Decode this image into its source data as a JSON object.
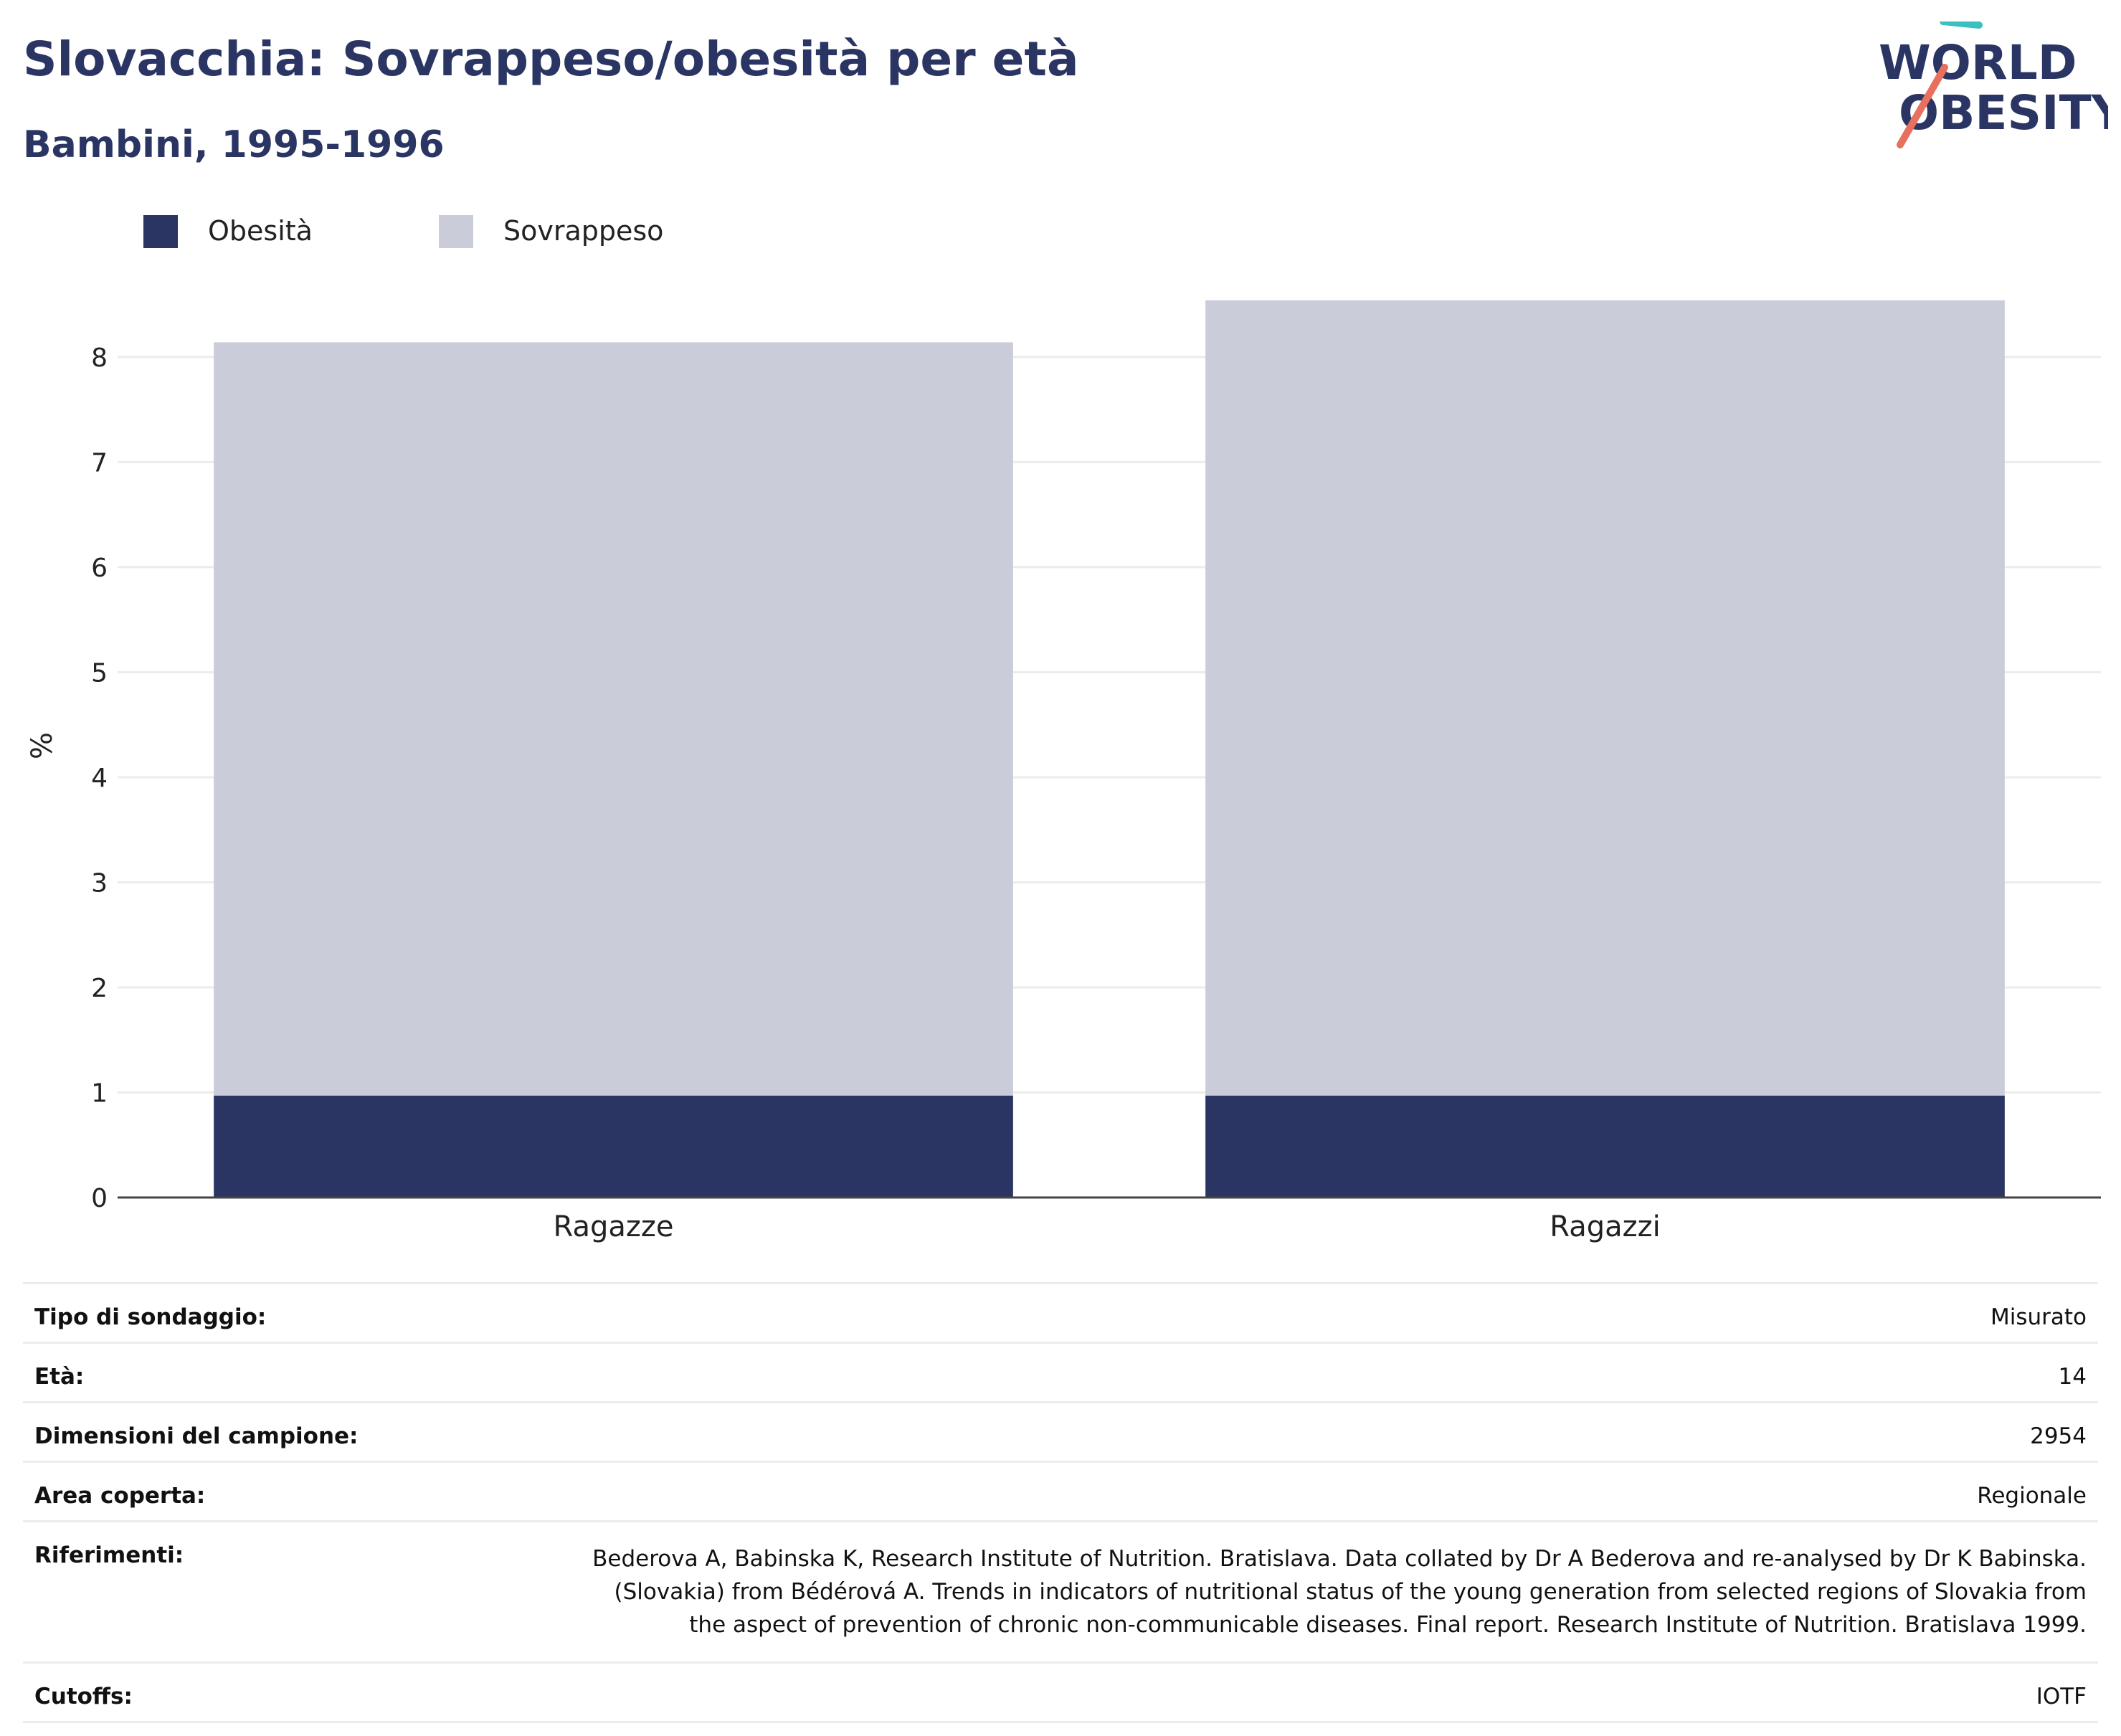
{
  "header": {
    "title": "Slovacchia: Sovrappeso/obesità per età",
    "subtitle": "Bambini, 1995-1996"
  },
  "logo": {
    "line1": "WORLD",
    "line2": "OBESITY",
    "accent_teal": "#3bbfbf",
    "accent_coral": "#e8705f"
  },
  "legend": [
    {
      "label": "Obesità",
      "color": "#2a3563"
    },
    {
      "label": "Sovrappeso",
      "color": "#cacdd9"
    }
  ],
  "chart_data": {
    "type": "bar",
    "stacked": true,
    "categories": [
      "Ragazze",
      "Ragazzi"
    ],
    "series": [
      {
        "name": "Obesità",
        "values": [
          0.97,
          0.97
        ],
        "color": "#2a3563"
      },
      {
        "name": "Sovrappeso",
        "values": [
          7.17,
          7.57
        ],
        "color": "#cacdd9"
      }
    ],
    "ylabel": "%",
    "ylim": [
      0,
      8.6
    ],
    "yticks": [
      0,
      1,
      2,
      3,
      4,
      5,
      6,
      7,
      8
    ],
    "grid": true,
    "legend_position": "top-left"
  },
  "info": [
    {
      "key": "Tipo di sondaggio:",
      "value": "Misurato"
    },
    {
      "key": "Età:",
      "value": "14"
    },
    {
      "key": "Dimensioni del campione:",
      "value": "2954"
    },
    {
      "key": "Area coperta:",
      "value": "Regionale"
    },
    {
      "key": "Riferimenti:",
      "value": "Bederova A, Babinska K, Research Institute of Nutrition. Bratislava. Data collated by Dr A Bederova and re-analysed by Dr K Babinska. (Slovakia) from Bédérová A. Trends in indicators of nutritional status of the young generation from selected regions of Slovakia from the aspect of prevention of chronic non-communicable diseases. Final report. Research Institute of Nutrition. Bratislava 1999."
    },
    {
      "key": "Cutoffs:",
      "value": "IOTF"
    }
  ]
}
